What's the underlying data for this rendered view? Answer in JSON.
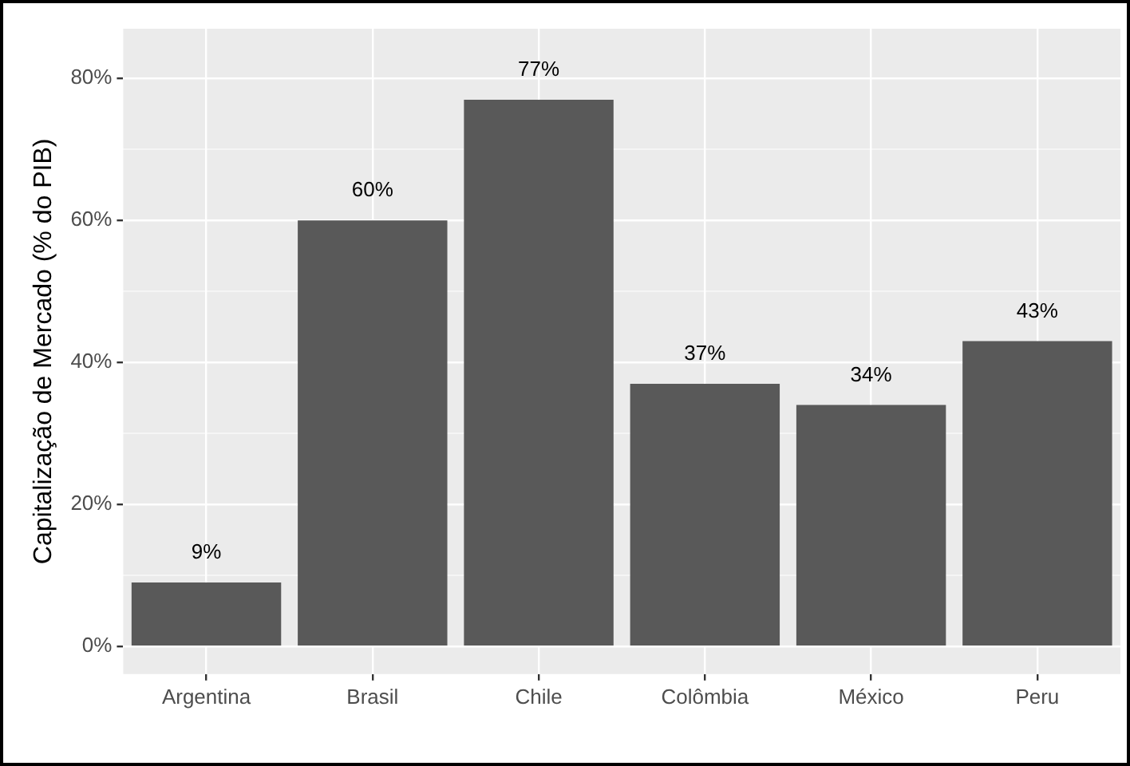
{
  "chart_data": {
    "type": "bar",
    "ylabel": "Capitalização de Mercado (% do PIB)",
    "categories": [
      "Argentina",
      "Brasil",
      "Chile",
      "Colômbia",
      "México",
      "Peru"
    ],
    "values": [
      9,
      60,
      77,
      37,
      34,
      43
    ],
    "value_labels": [
      "9%",
      "60%",
      "77%",
      "37%",
      "34%",
      "43%"
    ],
    "color": "#595959",
    "ylim": [
      -3.9,
      87
    ],
    "yticks": [
      {
        "value": 0,
        "label": "0%"
      },
      {
        "value": 10,
        "label": null
      },
      {
        "value": 20,
        "label": "20%"
      },
      {
        "value": 30,
        "label": null
      },
      {
        "value": 40,
        "label": "40%"
      },
      {
        "value": 50,
        "label": null
      },
      {
        "value": 60,
        "label": "60%"
      },
      {
        "value": 70,
        "label": null
      },
      {
        "value": 80,
        "label": "80%"
      }
    ],
    "grid": true
  }
}
